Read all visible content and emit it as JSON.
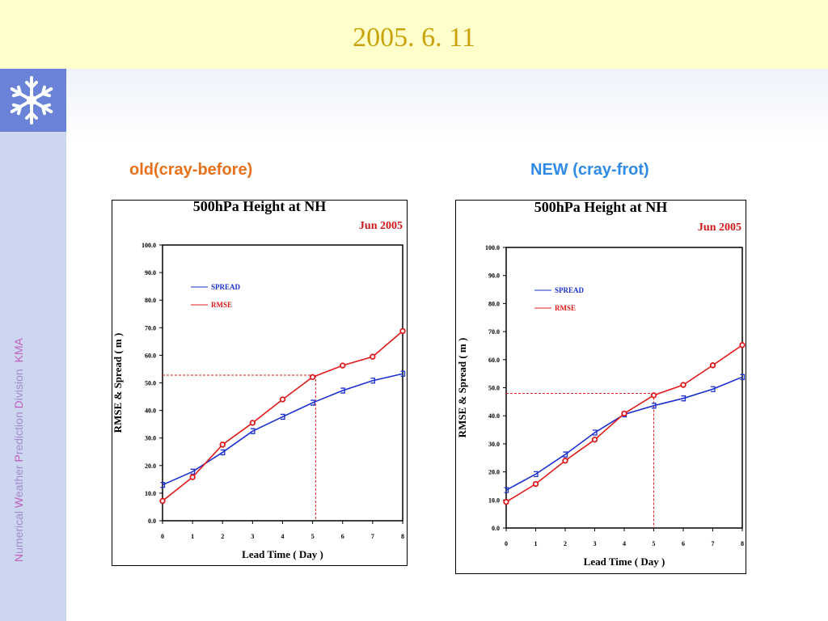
{
  "header": {
    "title": "2005. 6. 11"
  },
  "sidebar": {
    "logo_icon": "snowflake-icon",
    "org_text": {
      "w1_cap": "N",
      "w1_rest": "umerical",
      "w2_cap": "W",
      "w2_rest": "eather",
      "w3_cap": "P",
      "w3_rest": "rediction",
      "w4_cap": "D",
      "w4_rest": "ivision",
      "abbr": "KMA"
    }
  },
  "colors": {
    "spread": "#1a2fd0",
    "rmse": "#e01a1a",
    "old_label": "#e8701a",
    "new_label": "#2f8ae8",
    "title": "#c9a20a"
  },
  "panels": {
    "old": {
      "label": "old(cray-before)"
    },
    "new": {
      "label": "NEW (cray-frot)"
    }
  },
  "chart_data": [
    {
      "type": "line",
      "title": "500hPa Height at NH",
      "subtitle": "Jun 2005",
      "xlabel": "Lead Time ( Day )",
      "ylabel": "RMSE & Spread ( m )",
      "x": [
        0,
        1,
        2,
        3,
        4,
        5,
        6,
        7,
        8
      ],
      "xlim": [
        0,
        8
      ],
      "ylim": [
        0,
        100
      ],
      "yticks": [
        "0.0",
        "10.0",
        "20.0",
        "30.0",
        "40.0",
        "50.0",
        "60.0",
        "70.0",
        "80.0",
        "90.0",
        "100.0"
      ],
      "legend_position": "top-left",
      "series": [
        {
          "name": "SPREAD",
          "color": "#1a2fd0",
          "values": [
            13.0,
            17.8,
            24.8,
            32.5,
            37.7,
            42.8,
            47.2,
            50.8,
            53.3
          ]
        },
        {
          "name": "RMSE",
          "color": "#e01a1a",
          "values": [
            7.2,
            15.8,
            27.6,
            35.5,
            44.0,
            52.1,
            56.3,
            59.5,
            68.8
          ]
        }
      ],
      "reference": {
        "x": 5.1,
        "y": 52.8
      }
    },
    {
      "type": "line",
      "title": "500hPa Height at NH",
      "subtitle": "Jun 2005",
      "xlabel": "Lead Time ( Day )",
      "ylabel": "RMSE & Spread ( m )",
      "x": [
        0,
        1,
        2,
        3,
        4,
        5,
        6,
        7,
        8
      ],
      "xlim": [
        0,
        8
      ],
      "ylim": [
        0,
        100
      ],
      "yticks": [
        "0.0",
        "10.0",
        "20.0",
        "30.0",
        "40.0",
        "50.0",
        "60.0",
        "70.0",
        "80.0",
        "90.0",
        "100.0"
      ],
      "legend_position": "top-left",
      "series": [
        {
          "name": "SPREAD",
          "color": "#1a2fd0",
          "values": [
            13.5,
            19.2,
            26.2,
            34.0,
            40.5,
            43.6,
            46.2,
            49.5,
            53.8
          ]
        },
        {
          "name": "RMSE",
          "color": "#e01a1a",
          "values": [
            9.3,
            15.7,
            24.0,
            31.5,
            40.8,
            47.3,
            51.0,
            58.0,
            65.2
          ]
        }
      ],
      "reference": {
        "x": 5.0,
        "y": 48.0
      }
    }
  ]
}
